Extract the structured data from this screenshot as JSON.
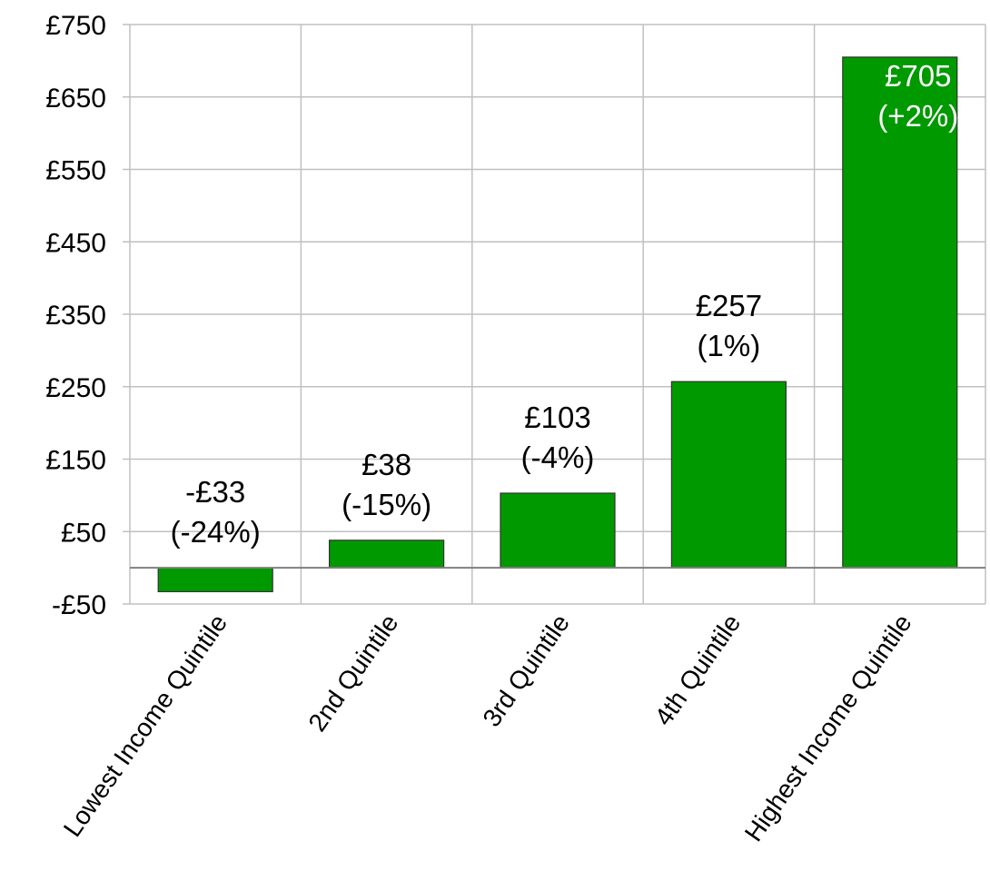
{
  "chart_data": {
    "type": "bar",
    "categories": [
      "Lowest Income Quintile",
      "2nd Quintile",
      "3rd Quintile",
      "4th Quintile",
      "Highest Income Quintile"
    ],
    "values": [
      -33,
      38,
      103,
      257,
      705
    ],
    "data_labels": [
      [
        "-£33",
        "(-24%)"
      ],
      [
        "£38",
        "(-15%)"
      ],
      [
        "£103",
        "(-4%)"
      ],
      [
        "£257",
        "(1%)"
      ],
      [
        "£705",
        "(+2%)"
      ]
    ],
    "y_ticks": [
      750,
      650,
      550,
      450,
      350,
      250,
      150,
      50,
      -50
    ],
    "y_tick_labels": [
      "£750",
      "£650",
      "£550",
      "£450",
      "£350",
      "£250",
      "£150",
      "£50",
      "-£50"
    ],
    "ylim": [
      -50,
      750
    ],
    "title": "",
    "xlabel": "",
    "ylabel": "",
    "grid": true,
    "legend": "none",
    "bar_color": "#009900",
    "grid_color": "#c0c0c0"
  }
}
